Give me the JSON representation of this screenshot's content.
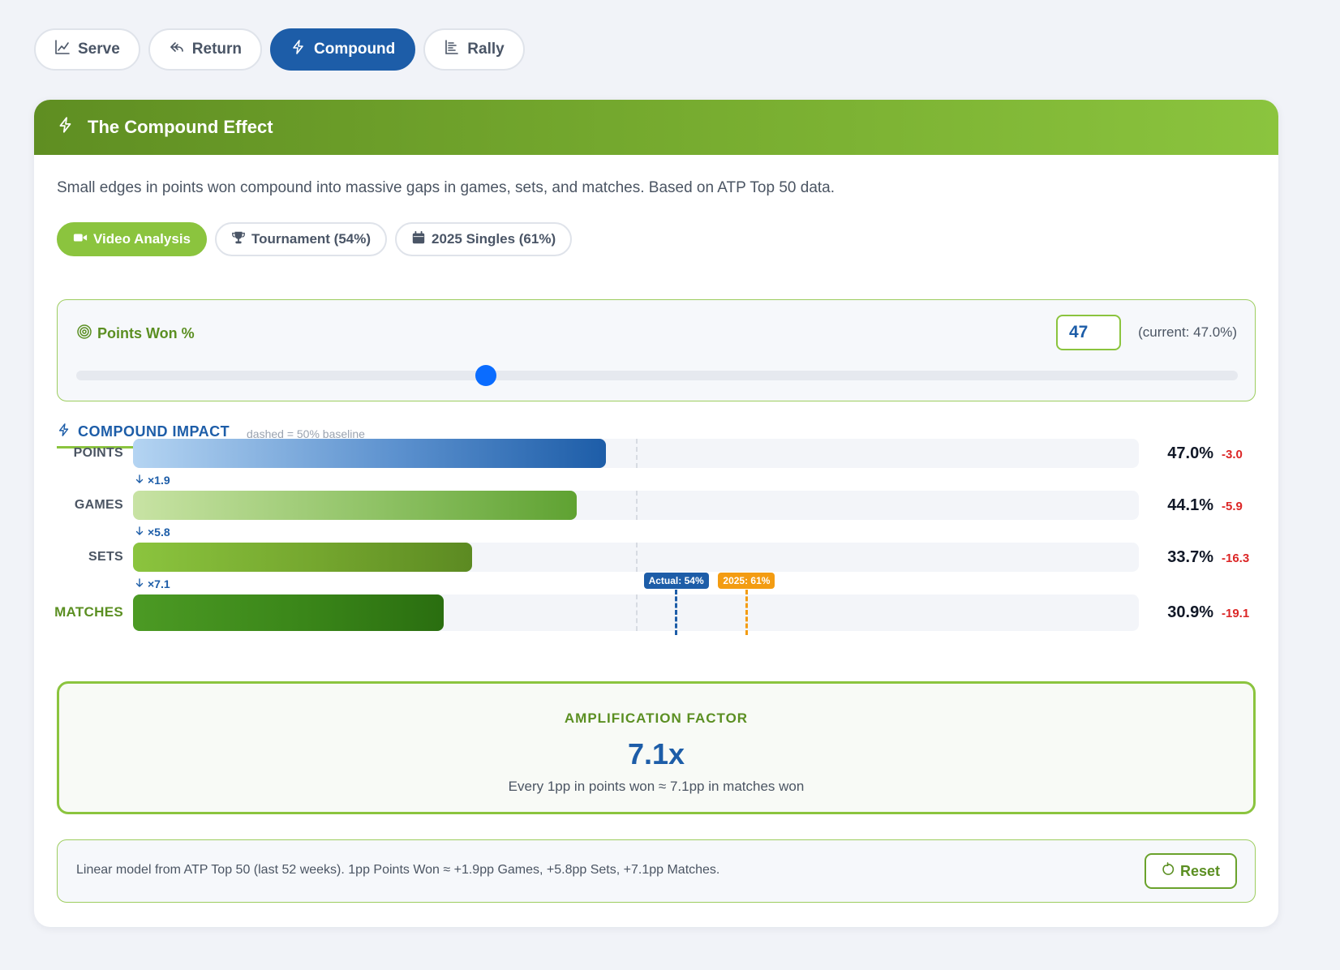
{
  "tabs": [
    {
      "label": "Serve",
      "icon": "chart-line-icon",
      "active": false
    },
    {
      "label": "Return",
      "icon": "return-arrow-icon",
      "active": false
    },
    {
      "label": "Compound",
      "icon": "lightning-icon",
      "active": true
    },
    {
      "label": "Rally",
      "icon": "rally-list-icon",
      "active": false
    }
  ],
  "card": {
    "title": "The Compound Effect",
    "icon": "lightning-icon",
    "description": "Small edges in points won compound into massive gaps in games, sets, and matches. Based on ATP Top 50 data."
  },
  "filters": [
    {
      "label": "Video Analysis",
      "icon": "video-camera-icon",
      "active": true
    },
    {
      "label": "Tournament (54%)",
      "icon": "trophy-icon",
      "active": false
    },
    {
      "label": "2025 Singles (61%)",
      "icon": "calendar-icon",
      "active": false
    }
  ],
  "slider": {
    "label": "Points Won %",
    "icon": "target-icon",
    "input_value": "47",
    "current_note": "(current: 47.0%)",
    "value": 47,
    "position_fraction": 0.353
  },
  "impact": {
    "title": "COMPOUND IMPACT",
    "note": "dashed = 50% baseline",
    "baseline_pct": 50,
    "rows": [
      {
        "label": "POINTS",
        "value": "47.0%",
        "pct": 47.0,
        "delta": "-3.0"
      },
      {
        "label": "GAMES",
        "value": "44.1%",
        "pct": 44.1,
        "delta": "-5.9"
      },
      {
        "label": "SETS",
        "value": "33.7%",
        "pct": 33.7,
        "delta": "-16.3"
      },
      {
        "label": "MATCHES",
        "value": "30.9%",
        "pct": 30.9,
        "delta": "-19.1"
      }
    ],
    "multipliers": [
      "×1.9",
      "×5.8",
      "×7.1"
    ],
    "markers": [
      {
        "label": "Actual: 54%",
        "pct": 54,
        "color": "#1d5da8"
      },
      {
        "label": "2025: 61%",
        "pct": 61,
        "color": "#f39c12"
      }
    ]
  },
  "amplification": {
    "label": "AMPLIFICATION FACTOR",
    "value": "7.1x",
    "description": "Every 1pp in points won ≈ 7.1pp in matches won"
  },
  "footer": {
    "text": "Linear model from ATP Top 50 (last 52 weeks). 1pp Points Won ≈ +1.9pp Games, +5.8pp Sets, +7.1pp Matches.",
    "reset_label": "Reset",
    "reset_icon": "reset-icon"
  },
  "colors": {
    "primary_blue": "#1d5da8",
    "accent_green": "#8bc43e",
    "dark_green": "#5b8f22",
    "negative_red": "#dc2626",
    "marker_orange": "#f39c12"
  }
}
